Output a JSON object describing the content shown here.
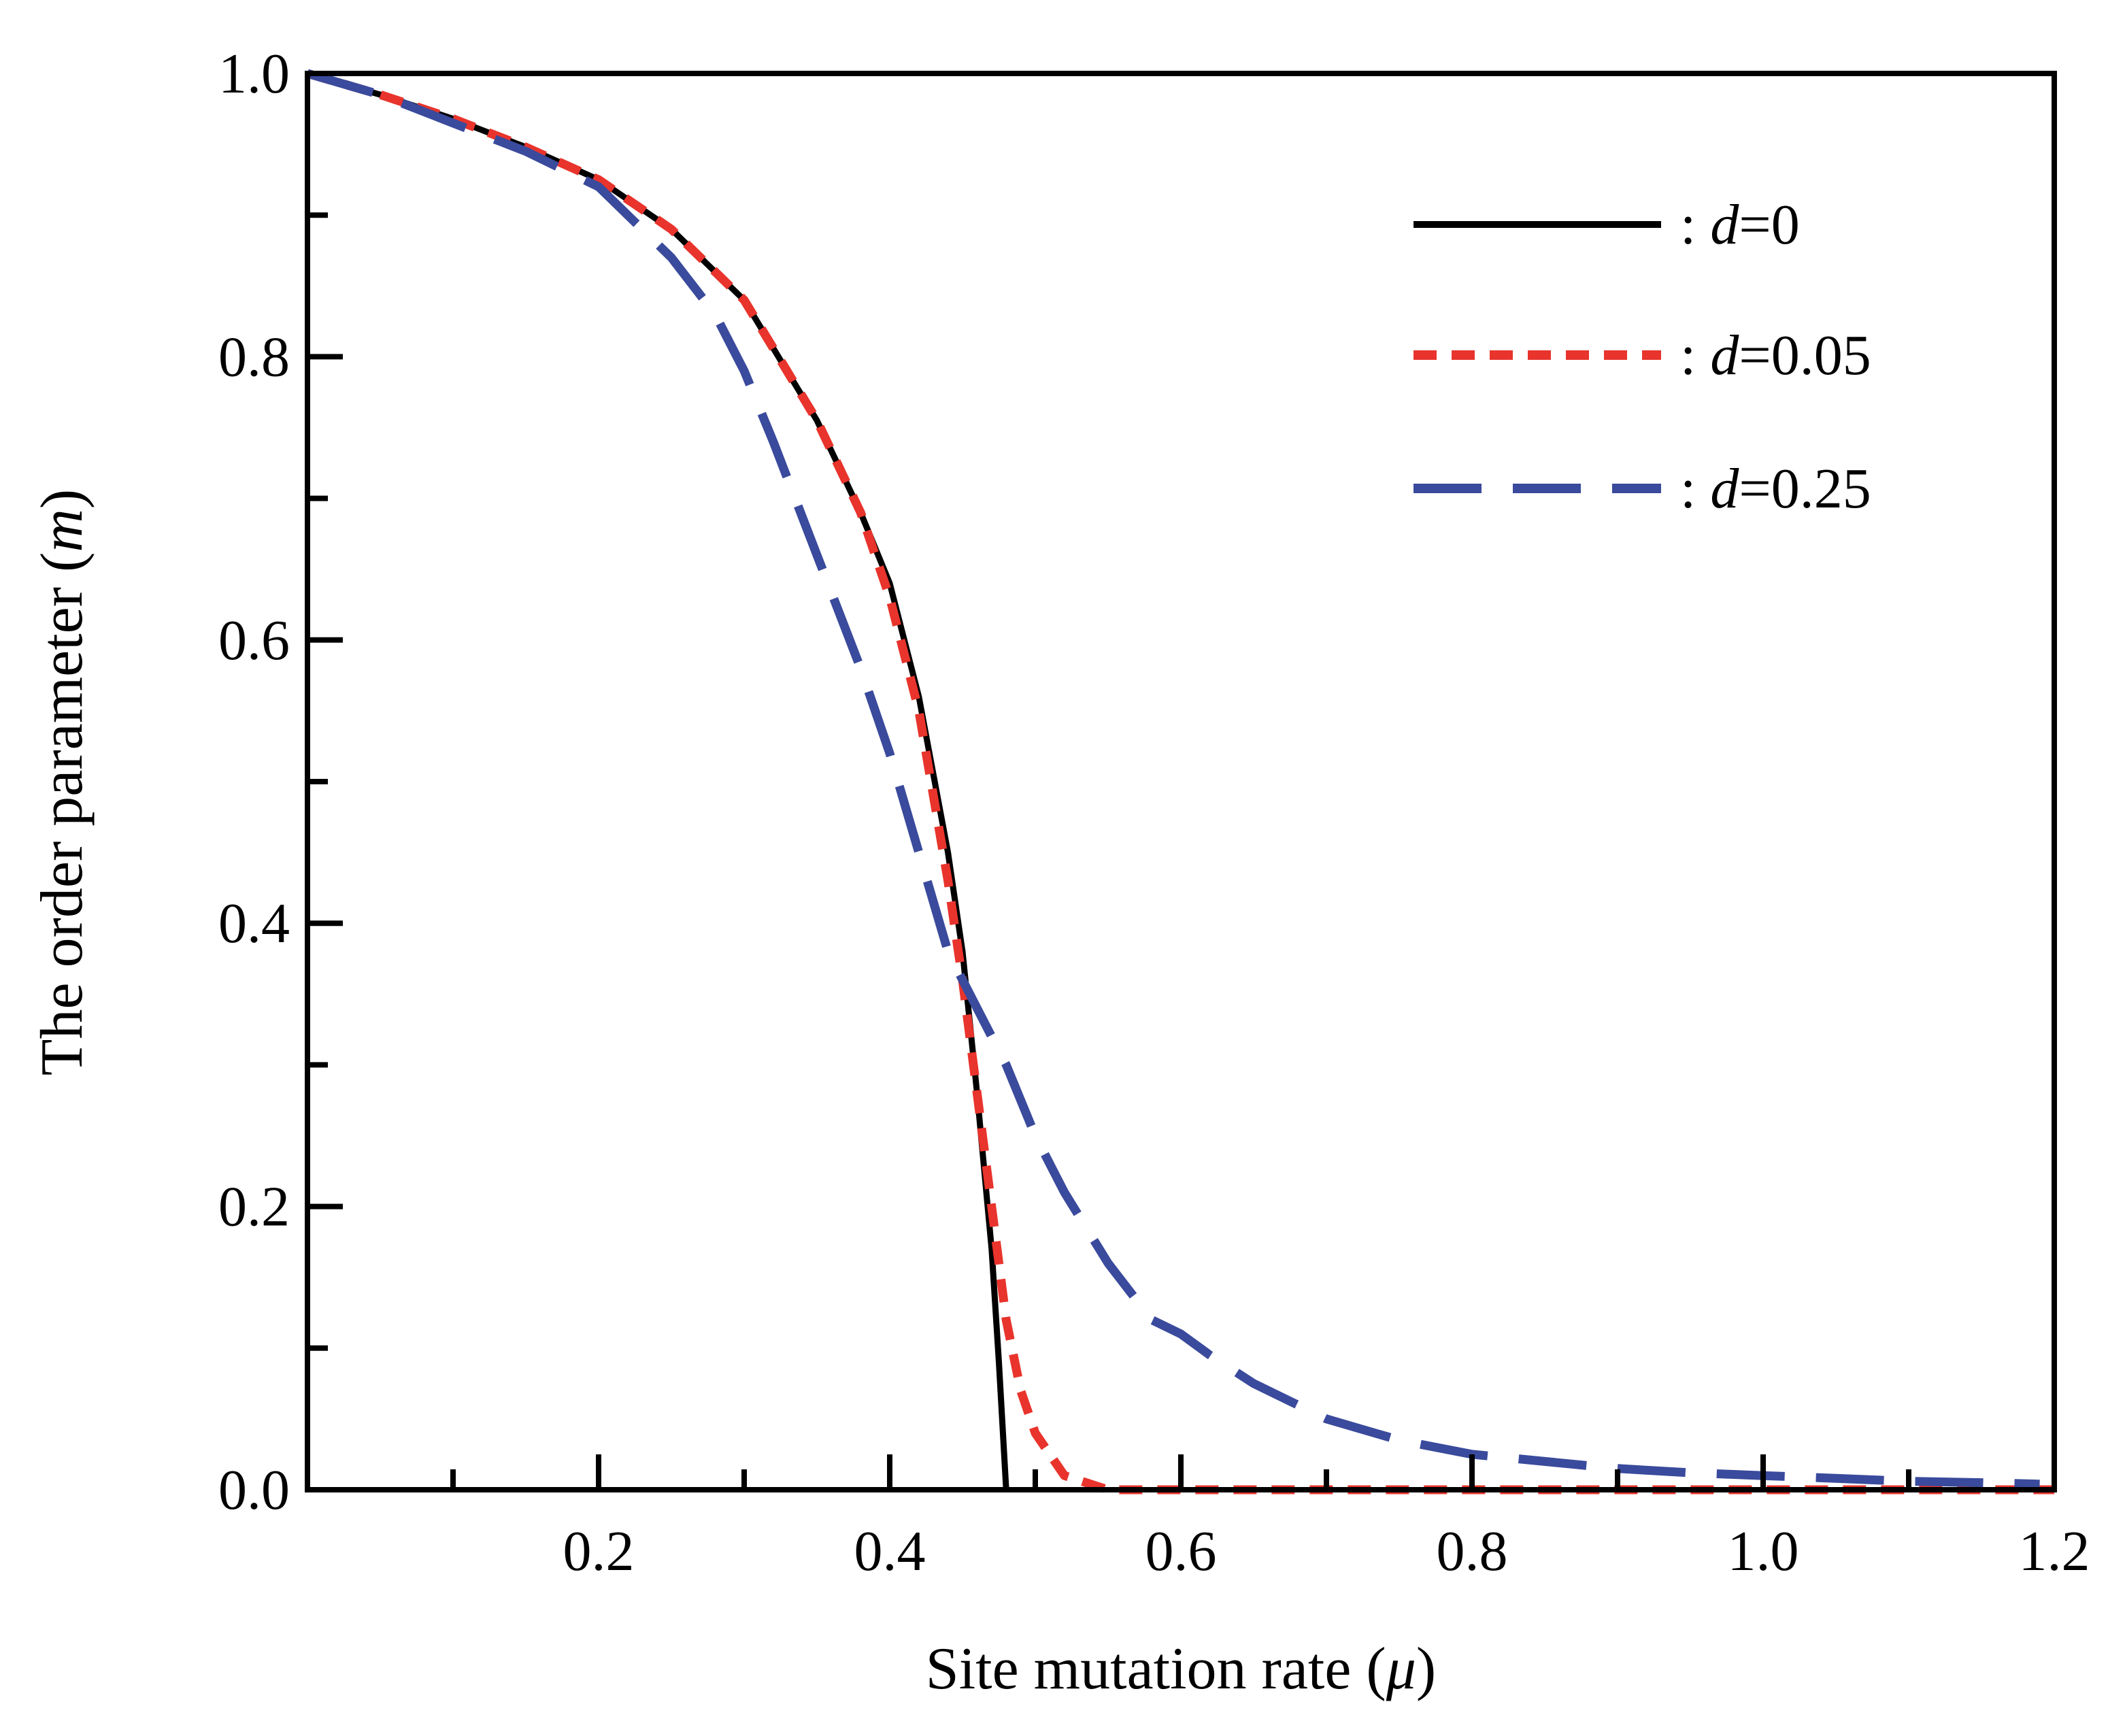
{
  "chart_data": {
    "type": "line",
    "xlabel": "Site mutation rate (μ)",
    "ylabel": "The order parameter (m)",
    "xlim": [
      0,
      1.2
    ],
    "ylim": [
      0,
      1.0
    ],
    "x_ticks": [
      "0.2",
      "0.4",
      "0.6",
      "0.8",
      "1.0",
      "1.2"
    ],
    "y_ticks": [
      "0.0",
      "0.2",
      "0.4",
      "0.6",
      "0.8",
      "1.0"
    ],
    "grid": false,
    "legend_position": "top-right",
    "series": [
      {
        "name": ": d=0",
        "color": "#000000",
        "style": "solid",
        "x": [
          0.0,
          0.05,
          0.1,
          0.15,
          0.2,
          0.25,
          0.3,
          0.35,
          0.38,
          0.4,
          0.42,
          0.44,
          0.45,
          0.46,
          0.47,
          0.475,
          0.48
        ],
        "y": [
          1.0,
          0.985,
          0.968,
          0.948,
          0.925,
          0.89,
          0.84,
          0.755,
          0.69,
          0.64,
          0.56,
          0.45,
          0.38,
          0.28,
          0.17,
          0.09,
          0.0
        ]
      },
      {
        "name": ": d=0.05",
        "color": "#e8342c",
        "style": "dotted",
        "x": [
          0.0,
          0.05,
          0.1,
          0.15,
          0.2,
          0.25,
          0.3,
          0.35,
          0.38,
          0.4,
          0.42,
          0.44,
          0.45,
          0.46,
          0.47,
          0.48,
          0.49,
          0.5,
          0.52,
          0.55,
          0.6,
          0.8,
          1.0,
          1.2
        ],
        "y": [
          1.0,
          0.985,
          0.968,
          0.948,
          0.925,
          0.89,
          0.84,
          0.755,
          0.69,
          0.63,
          0.55,
          0.43,
          0.36,
          0.28,
          0.2,
          0.12,
          0.07,
          0.04,
          0.01,
          0.0,
          0.0,
          0.0,
          0.0,
          0.0
        ]
      },
      {
        "name": ": d=0.25",
        "color": "#3a4a9c",
        "style": "dashed",
        "x": [
          0.0,
          0.05,
          0.1,
          0.15,
          0.2,
          0.25,
          0.28,
          0.3,
          0.32,
          0.35,
          0.38,
          0.4,
          0.42,
          0.44,
          0.45,
          0.48,
          0.5,
          0.52,
          0.55,
          0.58,
          0.6,
          0.62,
          0.65,
          0.7,
          0.75,
          0.8,
          0.85,
          0.9,
          0.95,
          1.0,
          1.05,
          1.1,
          1.15,
          1.19
        ],
        "y": [
          1.0,
          0.985,
          0.965,
          0.945,
          0.92,
          0.87,
          0.83,
          0.79,
          0.74,
          0.66,
          0.58,
          0.52,
          0.45,
          0.38,
          0.36,
          0.3,
          0.25,
          0.21,
          0.16,
          0.12,
          0.11,
          0.095,
          0.075,
          0.05,
          0.035,
          0.025,
          0.02,
          0.015,
          0.012,
          0.01,
          0.008,
          0.006,
          0.005,
          0.004
        ]
      }
    ]
  }
}
